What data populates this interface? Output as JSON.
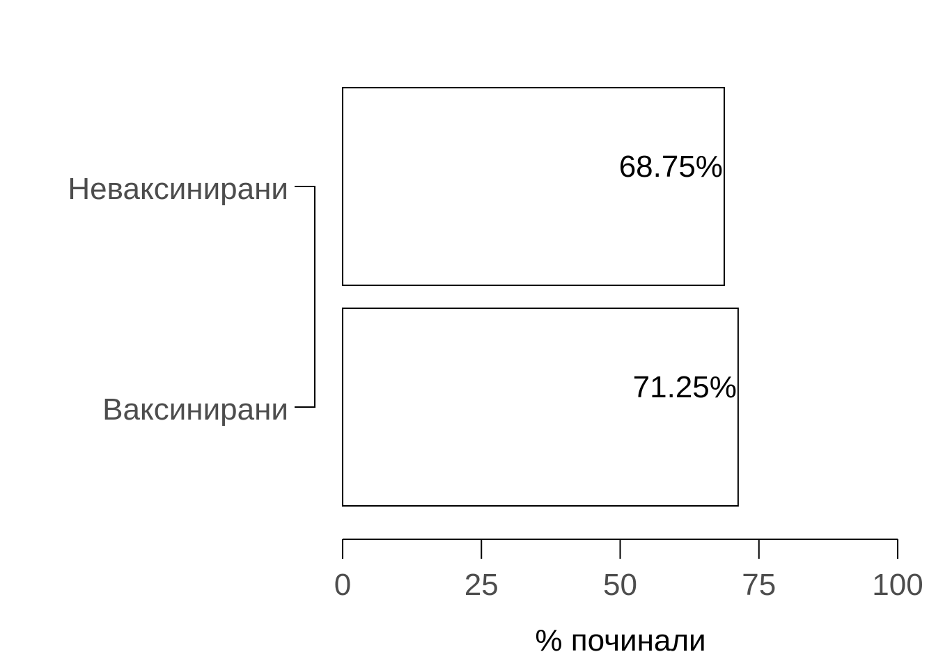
{
  "chart_data": {
    "type": "bar",
    "orientation": "horizontal",
    "categories": [
      "Неваксинирани",
      "Ваксинирани"
    ],
    "values": [
      68.75,
      71.25
    ],
    "data_labels": [
      "68.75%",
      "71.25%"
    ],
    "xlabel": "% починали",
    "ylabel": "",
    "title": "",
    "xlim": [
      0,
      100
    ],
    "xticks": [
      0,
      25,
      50,
      75,
      100
    ],
    "xtick_labels": [
      "0",
      "25",
      "50",
      "75",
      "100"
    ],
    "grid": false,
    "legend": "none",
    "colors": {
      "bar_fill": "#ffffff",
      "bar_stroke": "#000000",
      "tick_text": "#4d4d4d",
      "label_text": "#000000"
    }
  }
}
